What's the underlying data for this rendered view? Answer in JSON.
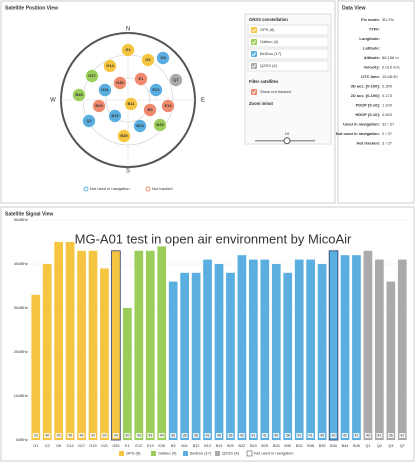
{
  "position_view": {
    "title": "Satellite Position View",
    "compass": [
      "N",
      "E",
      "S",
      "W"
    ],
    "satellites": [
      {
        "label": "G1",
        "color": "#f5c542"
      },
      {
        "label": "G2",
        "color": "#f5c542"
      },
      {
        "label": "G8",
        "color": "#5aaee0"
      },
      {
        "label": "G14",
        "color": "#f5c542"
      },
      {
        "label": "G17",
        "color": "#9acd59"
      },
      {
        "label": "G21",
        "color": "#5aaee0"
      },
      {
        "label": "G30",
        "color": "#f08a6e"
      },
      {
        "label": "E1",
        "color": "#f08a6e"
      },
      {
        "label": "E12",
        "color": "#5aaee0"
      },
      {
        "label": "E13",
        "color": "#f08a6e"
      },
      {
        "label": "B3",
        "color": "#f08a6e"
      },
      {
        "label": "B11",
        "color": "#f5c542"
      },
      {
        "label": "B19",
        "color": "#5aaee0"
      },
      {
        "label": "B20",
        "color": "#f08a6e"
      },
      {
        "label": "B24",
        "color": "#5aaee0"
      },
      {
        "label": "B25",
        "color": "#9acd59"
      },
      {
        "label": "B30",
        "color": "#f5c542"
      },
      {
        "label": "Q2",
        "color": "#5aaee0"
      },
      {
        "label": "Q7",
        "color": "#aaaaaa"
      },
      {
        "label": "B45",
        "color": "#9acd59"
      }
    ],
    "legend": [
      {
        "label": "Not used in navigation",
        "color": "#5aaee0"
      },
      {
        "label": "Not tracked",
        "color": "#f08a6e"
      }
    ],
    "controls": {
      "constellation_title": "GNSS constellation",
      "constellations": [
        {
          "name": "GPS (8)",
          "color": "#f5c542"
        },
        {
          "name": "Galileo (4)",
          "color": "#9acd59"
        },
        {
          "name": "BeiDou (17)",
          "color": "#5aaee0"
        },
        {
          "name": "QZSS (4)",
          "color": "#aaaaaa"
        }
      ],
      "filter_title": "Filter satellites",
      "show_not_tracked": "Show not tracked",
      "zoom_title": "Zoom in/out",
      "zoom_value": "10"
    }
  },
  "data_view": {
    "title": "Data View",
    "rows": [
      {
        "label": "Fix mode:",
        "value": "3D-Fix"
      },
      {
        "label": "TTFF:"
      },
      {
        "label": "Longitude:"
      },
      {
        "label": "Latitude:"
      },
      {
        "label": "Altitude:",
        "value": "86.158 m"
      },
      {
        "label": "Velocity:",
        "value": "0.019 m/s"
      },
      {
        "label": "UTC time:",
        "value": "15:48:30"
      },
      {
        "label": "3D acc. [0-100]:",
        "value": "0.300"
      },
      {
        "label": "2D acc. [0-100]:",
        "value": "0.173"
      },
      {
        "label": "PDOP [0-10]:",
        "value": "1.100"
      },
      {
        "label": "HDOP [0-10]:",
        "value": "0.500"
      },
      {
        "label": "Used in navigation:",
        "value": "32 / 37"
      },
      {
        "label": "Not used in navigation:",
        "value": "2 / 37"
      },
      {
        "label": "Not tracked:",
        "value": "3 / 37"
      }
    ]
  },
  "signal_view": {
    "title": "Satellite Signal View"
  },
  "chart_data": {
    "type": "bar",
    "annotation": "MG-A01 test in open air environment by MicoAir",
    "ylim": [
      0,
      50
    ],
    "yticks": [
      {
        "value": 0,
        "label": "0dBHz"
      },
      {
        "value": 10,
        "label": "10dBHz"
      },
      {
        "value": 20,
        "label": "20dBHz"
      },
      {
        "value": 30,
        "label": "30dBHz"
      },
      {
        "value": 40,
        "label": "40dBHz"
      },
      {
        "value": 50,
        "label": "50dBHz"
      }
    ],
    "grid": true,
    "not_used_label": "Not used in navigation",
    "not_used": [
      "G30",
      "B40"
    ],
    "series": [
      {
        "name": "GPS (8)",
        "color": "#f5c542",
        "categories": [
          "G1",
          "G2",
          "G8",
          "G14",
          "G17",
          "G19",
          "G21",
          "G30"
        ],
        "values": [
          33,
          40,
          45,
          45,
          43,
          43,
          39,
          43
        ]
      },
      {
        "name": "Galileo (4)",
        "color": "#9acd59",
        "categories": [
          "E1",
          "E12",
          "E13",
          "E26"
        ],
        "values": [
          30,
          43,
          43,
          44
        ]
      },
      {
        "name": "BeiDou (17)",
        "color": "#5aaee0",
        "categories": [
          "B3",
          "B11",
          "B12",
          "B13",
          "B19",
          "B20",
          "B22",
          "B24",
          "B25",
          "B26",
          "B30",
          "B32",
          "B38",
          "B39",
          "B40",
          "B44",
          "B45"
        ],
        "values": [
          36,
          38,
          38,
          41,
          40,
          38,
          42,
          41,
          41,
          40,
          38,
          41,
          41,
          40,
          43,
          42,
          42
        ]
      },
      {
        "name": "QZSS (4)",
        "color": "#aaaaaa",
        "categories": [
          "Q1",
          "Q2",
          "Q3",
          "Q7"
        ],
        "values": [
          43,
          41,
          36,
          41
        ]
      }
    ]
  }
}
